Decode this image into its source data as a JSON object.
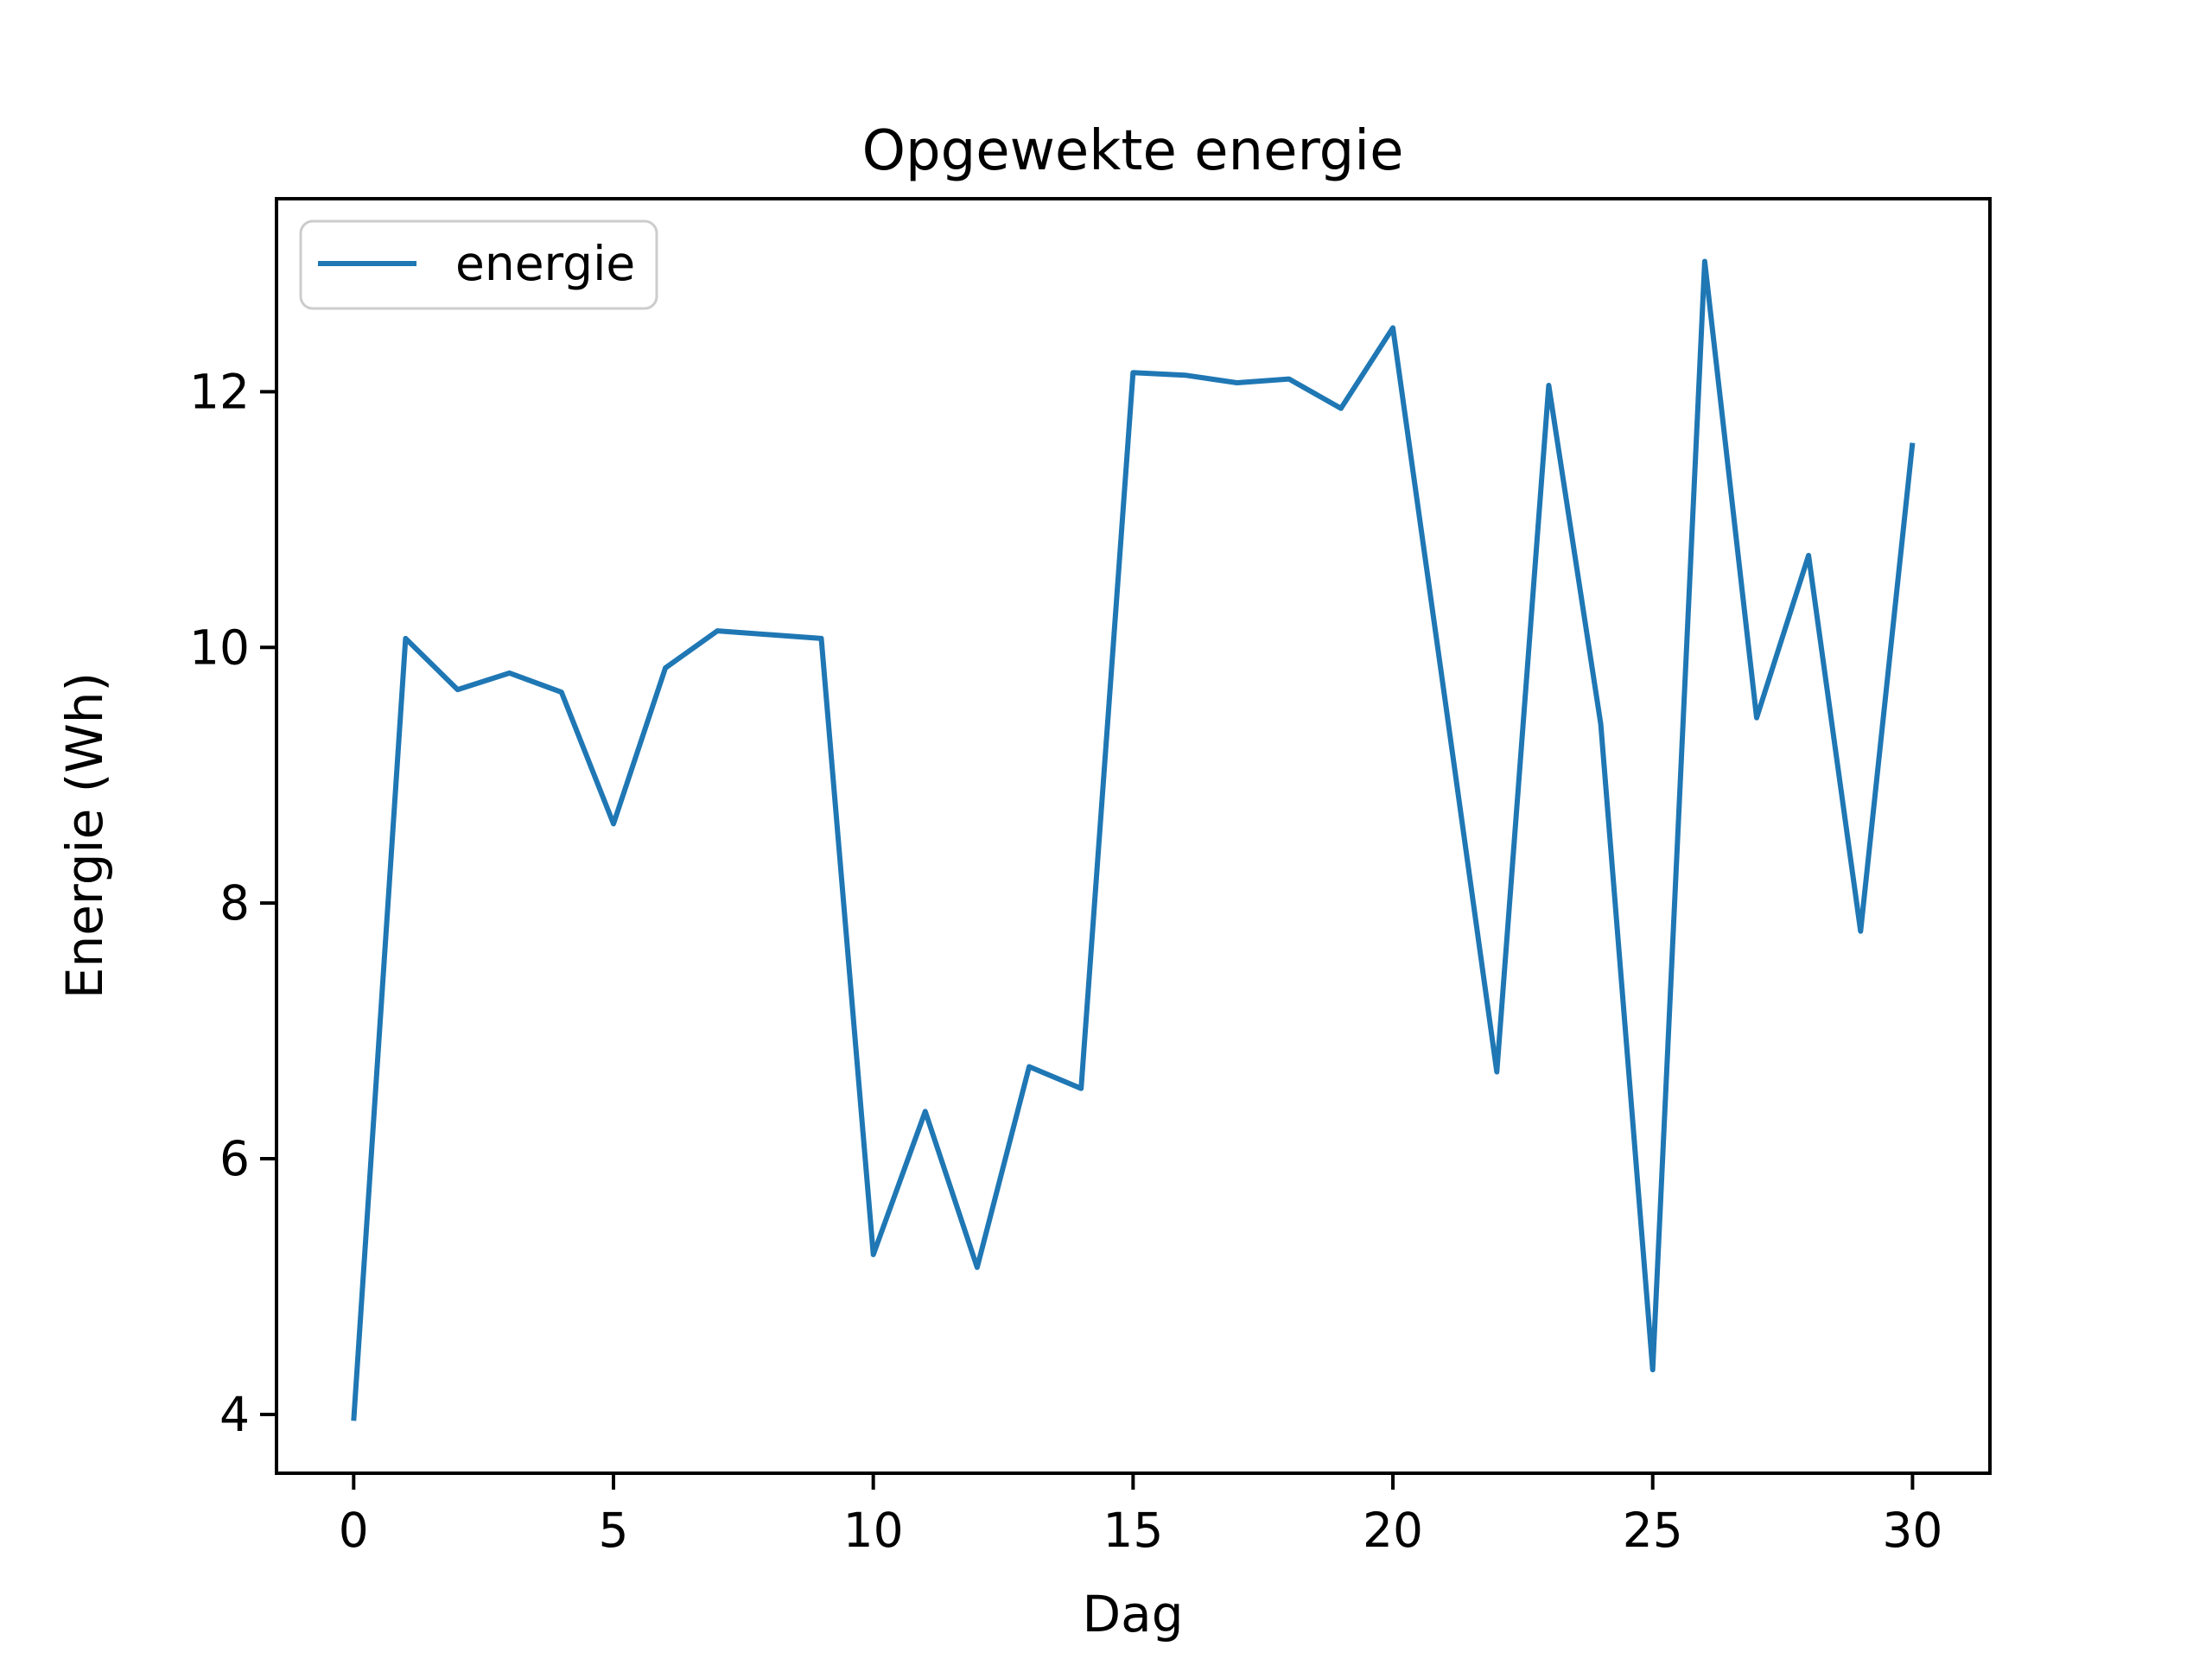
{
  "chart_data": {
    "type": "line",
    "title": "Opgewekte energie",
    "xlabel": "Dag",
    "ylabel": "Energie (Wh)",
    "x": [
      0,
      1,
      2,
      3,
      4,
      5,
      6,
      7,
      8,
      9,
      10,
      11,
      12,
      13,
      14,
      15,
      16,
      17,
      18,
      19,
      20,
      21,
      22,
      23,
      24,
      25,
      26,
      27,
      28,
      29,
      30
    ],
    "series": [
      {
        "name": "energie",
        "color": "#1f77b4",
        "values": [
          3.95,
          10.07,
          9.67,
          9.8,
          9.65,
          8.62,
          9.84,
          10.13,
          10.1,
          10.07,
          5.25,
          6.37,
          5.15,
          6.72,
          6.55,
          12.15,
          12.13,
          12.07,
          12.1,
          11.87,
          12.5,
          9.6,
          6.68,
          12.05,
          9.4,
          4.35,
          13.02,
          9.45,
          10.72,
          7.78,
          11.6
        ]
      }
    ],
    "xlim": [
      -1.485,
      31.49
    ],
    "ylim": [
      3.54,
      13.51
    ],
    "x_ticks": [
      0,
      5,
      10,
      15,
      20,
      25,
      30
    ],
    "y_ticks": [
      4,
      6,
      8,
      10,
      12
    ],
    "grid": false,
    "legend_position": "upper left",
    "background": "#ffffff",
    "axis_color": "#000000"
  }
}
